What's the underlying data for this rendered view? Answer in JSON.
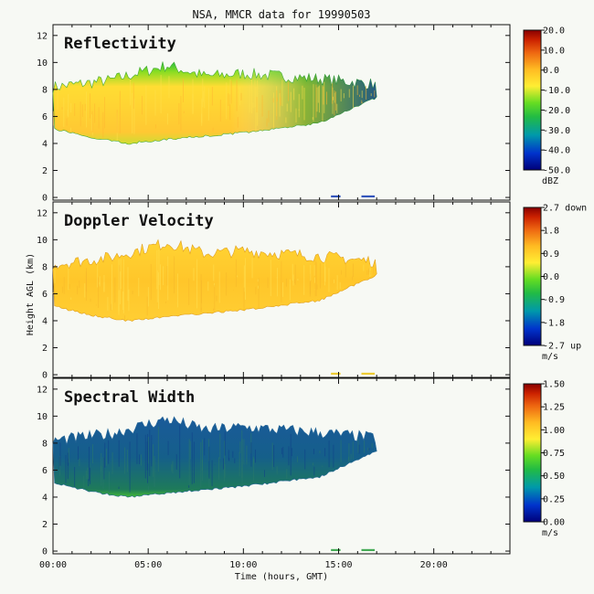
{
  "figure": {
    "title": "NSA, MMCR data for 19990503",
    "xlabel": "Time (hours, GMT)",
    "ylabel": "Height AGL (km)"
  },
  "chart_data": {
    "type": "heatmap",
    "x_ticks": [
      "00:00",
      "05:00",
      "10:00",
      "15:00",
      "20:00"
    ],
    "x_tick_values": [
      0,
      5,
      10,
      15,
      20
    ],
    "xlim": [
      0,
      24
    ],
    "y_ticks": [
      0,
      2,
      4,
      6,
      8,
      10,
      12
    ],
    "ylim": [
      -0.2,
      12.8
    ],
    "cloud_base_km": [
      [
        0,
        5.1
      ],
      [
        2,
        4.4
      ],
      [
        4,
        4.0
      ],
      [
        6,
        4.3
      ],
      [
        10,
        4.8
      ],
      [
        14,
        5.5
      ],
      [
        17,
        7.4
      ]
    ],
    "cloud_top_km": [
      [
        0,
        8.0
      ],
      [
        3,
        8.5
      ],
      [
        6,
        9.6
      ],
      [
        8,
        8.8
      ],
      [
        10,
        9.0
      ],
      [
        14,
        8.6
      ],
      [
        17,
        8.2
      ]
    ],
    "panels": [
      {
        "title": "Reflectivity",
        "units": "dBZ",
        "colorbar_ticks": [
          "20.0",
          "10.0",
          "0.0",
          "-10.0",
          "-20.0",
          "-30.0",
          "-40.0",
          "-50.0"
        ],
        "range": [
          -50,
          20
        ]
      },
      {
        "title": "Doppler Velocity",
        "units": "m/s",
        "colorbar_ticks": [
          "2.7 down",
          "1.8",
          "0.9",
          "0.0",
          "-0.9",
          "-1.8",
          "-2.7 up"
        ],
        "range": [
          -2.7,
          2.7
        ]
      },
      {
        "title": "Spectral Width",
        "units": "m/s",
        "colorbar_ticks": [
          "1.50",
          "1.25",
          "1.00",
          "0.75",
          "0.50",
          "0.25",
          "0.00"
        ],
        "range": [
          0,
          1.5
        ]
      }
    ]
  },
  "colors": {
    "background": "#f7f9f4",
    "colormap": [
      "#00007a",
      "#0033cc",
      "#0099aa",
      "#22bb44",
      "#66dd22",
      "#ffee33",
      "#ffbb22",
      "#ee6611",
      "#cc2200",
      "#880000"
    ]
  }
}
